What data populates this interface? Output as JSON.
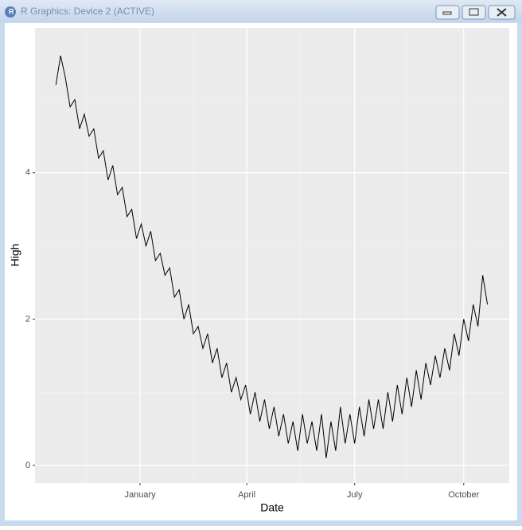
{
  "window": {
    "title": "R Graphics: Device 2 (ACTIVE)"
  },
  "chart_data": {
    "type": "line",
    "x_label": "Date",
    "y_label": "High",
    "x": [
      -71,
      -67,
      -63,
      -59,
      -55,
      -51,
      -47,
      -43,
      -39,
      -35,
      -31,
      -27,
      -23,
      -19,
      -15,
      -11,
      -7,
      -3,
      1,
      5,
      9,
      13,
      17,
      21,
      25,
      29,
      33,
      37,
      41,
      45,
      49,
      53,
      57,
      61,
      65,
      69,
      73,
      77,
      81,
      85,
      89,
      93,
      97,
      101,
      105,
      109,
      113,
      117,
      121,
      125,
      129,
      133,
      137,
      141,
      145,
      149,
      153,
      157,
      161,
      165,
      169,
      173,
      177,
      181,
      185,
      189,
      193,
      197,
      201,
      205,
      209,
      213,
      217,
      221,
      225,
      229,
      233,
      237,
      241,
      245,
      249,
      253,
      257,
      261,
      265,
      269,
      273,
      277,
      281,
      285,
      289,
      293
    ],
    "values": [
      5.2,
      5.6,
      5.3,
      4.9,
      5.0,
      4.6,
      4.8,
      4.5,
      4.6,
      4.2,
      4.3,
      3.9,
      4.1,
      3.7,
      3.8,
      3.4,
      3.5,
      3.1,
      3.3,
      3.0,
      3.2,
      2.8,
      2.9,
      2.6,
      2.7,
      2.3,
      2.4,
      2.0,
      2.2,
      1.8,
      1.9,
      1.6,
      1.8,
      1.4,
      1.6,
      1.2,
      1.4,
      1.0,
      1.2,
      0.9,
      1.1,
      0.7,
      1.0,
      0.6,
      0.9,
      0.5,
      0.8,
      0.4,
      0.7,
      0.3,
      0.6,
      0.2,
      0.7,
      0.3,
      0.6,
      0.2,
      0.7,
      0.1,
      0.6,
      0.2,
      0.8,
      0.3,
      0.7,
      0.3,
      0.8,
      0.4,
      0.9,
      0.5,
      0.9,
      0.5,
      1.0,
      0.6,
      1.1,
      0.7,
      1.2,
      0.8,
      1.3,
      0.9,
      1.4,
      1.1,
      1.5,
      1.2,
      1.6,
      1.3,
      1.8,
      1.5,
      2.0,
      1.7,
      2.2,
      1.9,
      2.6,
      2.2
    ],
    "color": "#000000",
    "xlim": [
      -88.6,
      311.4
    ],
    "xticks": [
      {
        "value": 0,
        "label": "January"
      },
      {
        "value": 90,
        "label": "April"
      },
      {
        "value": 181,
        "label": "July"
      },
      {
        "value": 273,
        "label": "October"
      }
    ],
    "ylim": [
      -0.24,
      5.98
    ],
    "yticks": [
      0,
      2,
      4
    ],
    "grid": true
  }
}
